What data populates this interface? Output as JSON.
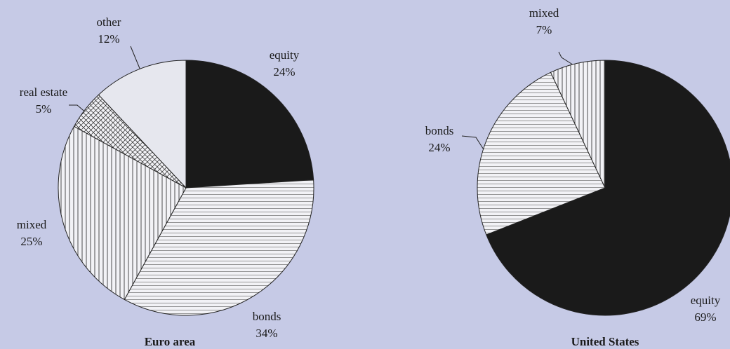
{
  "chart_data": [
    {
      "type": "pie",
      "title": "Euro area",
      "categories": [
        "equity",
        "bonds",
        "mixed",
        "real estate",
        "other"
      ],
      "values": [
        24,
        34,
        25,
        5,
        12
      ],
      "value_labels": [
        "24%",
        "34%",
        "25%",
        "5%",
        "12%"
      ],
      "colors": [
        "#1a1a1a",
        "#f2f2f6",
        "#f2f2f6",
        "#f2f2f6",
        "#e6e7ee"
      ],
      "patterns": [
        "solid",
        "horizontal",
        "vertical",
        "crosshatch",
        "solid"
      ]
    },
    {
      "type": "pie",
      "title": "United States",
      "categories": [
        "equity",
        "bonds",
        "mixed"
      ],
      "values": [
        69,
        24,
        7
      ],
      "value_labels": [
        "69%",
        "24%",
        "7%"
      ],
      "colors": [
        "#1a1a1a",
        "#f2f2f6",
        "#f2f2f6"
      ],
      "patterns": [
        "solid",
        "horizontal",
        "vertical"
      ]
    }
  ]
}
